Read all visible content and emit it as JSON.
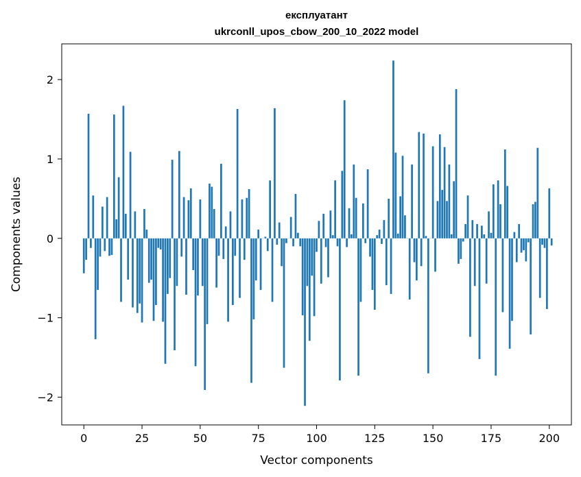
{
  "chart_data": {
    "type": "bar",
    "title_line1": "експлуатант",
    "title_line2": "ukrconll_upos_cbow_200_10_2022 model",
    "xlabel": "Vector components",
    "ylabel": "Components values",
    "xlim": [
      -9.5,
      209.5
    ],
    "ylim": [
      -2.35,
      2.45
    ],
    "xticks": [
      0,
      25,
      50,
      75,
      100,
      125,
      150,
      175,
      200
    ],
    "xtick_labels": [
      "0",
      "25",
      "50",
      "75",
      "100",
      "125",
      "150",
      "175",
      "200"
    ],
    "yticks": [
      -2,
      -1,
      0,
      1,
      2
    ],
    "ytick_labels": [
      "−2",
      "−1",
      "0",
      "1",
      "2"
    ],
    "grid": false,
    "bar_color": "#1f77b4",
    "values": [
      -0.44,
      -0.27,
      1.57,
      -0.12,
      0.54,
      -1.27,
      -0.65,
      -0.23,
      0.4,
      -0.16,
      0.52,
      -0.22,
      -0.21,
      1.56,
      0.24,
      0.77,
      -0.8,
      1.67,
      0.31,
      -0.52,
      1.09,
      -0.87,
      0.34,
      -0.94,
      -0.82,
      -1.06,
      0.37,
      0.11,
      -0.56,
      -0.52,
      -1.04,
      -0.84,
      -0.12,
      -0.14,
      -1.05,
      -1.58,
      -0.7,
      -0.5,
      0.99,
      -1.41,
      -0.6,
      1.1,
      -0.23,
      0.52,
      -0.71,
      0.48,
      0.63,
      -0.4,
      -1.61,
      -0.72,
      0.49,
      -0.6,
      -1.91,
      -1.08,
      0.69,
      0.65,
      0.37,
      -0.62,
      -0.22,
      0.94,
      -0.26,
      0.15,
      -1.05,
      0.34,
      -0.84,
      -0.22,
      1.63,
      -0.75,
      0.49,
      -0.27,
      0.51,
      0.62,
      -1.82,
      -1.02,
      -0.53,
      0.11,
      -0.65,
      0.0,
      0.02,
      -0.16,
      0.73,
      -0.8,
      1.64,
      -0.08,
      0.2,
      -0.35,
      -1.63,
      -0.06,
      0.0,
      0.27,
      -0.1,
      0.56,
      0.07,
      -0.1,
      -0.97,
      -2.11,
      -0.6,
      -1.29,
      -0.47,
      -0.98,
      -0.17,
      0.22,
      -0.57,
      0.31,
      -0.11,
      -0.49,
      0.35,
      0.04,
      0.73,
      -0.1,
      -1.79,
      0.85,
      1.74,
      -0.11,
      0.38,
      0.05,
      0.93,
      0.51,
      -1.73,
      -0.8,
      0.44,
      -0.06,
      0.87,
      -0.23,
      -0.65,
      -0.9,
      0.04,
      0.11,
      -0.07,
      0.23,
      -0.59,
      0.5,
      -0.7,
      2.24,
      1.08,
      0.06,
      0.53,
      1.04,
      0.29,
      0.0,
      -0.77,
      0.93,
      -0.3,
      -0.53,
      1.34,
      -0.35,
      1.32,
      0.03,
      -1.7,
      0.0,
      1.16,
      -0.42,
      0.47,
      1.31,
      0.61,
      1.15,
      0.47,
      0.93,
      0.05,
      0.72,
      1.88,
      -0.32,
      -0.26,
      -0.04,
      0.18,
      0.54,
      -1.24,
      0.23,
      -0.6,
      0.18,
      -1.52,
      0.16,
      0.05,
      -0.57,
      0.34,
      0.07,
      0.68,
      -1.73,
      0.73,
      0.43,
      -0.93,
      1.12,
      0.66,
      -1.39,
      -1.04,
      0.08,
      -0.3,
      0.18,
      -0.18,
      -0.15,
      -0.29,
      -0.05,
      -1.21,
      0.43,
      0.46,
      1.14,
      -0.75,
      -0.08,
      -0.12,
      -0.89,
      0.63,
      -0.09
    ]
  }
}
